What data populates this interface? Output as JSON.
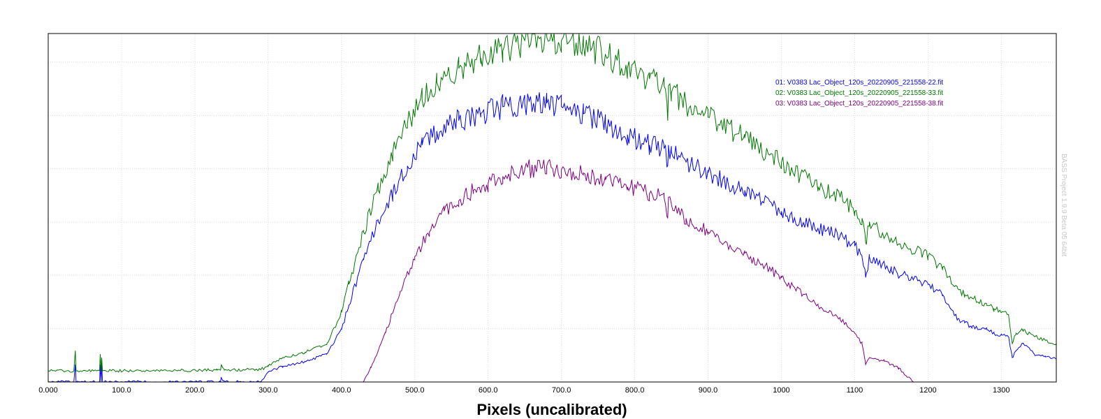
{
  "chart_data": {
    "type": "line",
    "title": "",
    "xlabel": "Pixels (uncalibrated)",
    "ylabel": "",
    "xlim": [
      0,
      1375
    ],
    "ylim": [
      0,
      1
    ],
    "grid": true,
    "legend_position": "top-right",
    "x_tick_labels": [
      "0.000",
      "100.0",
      "200.0",
      "300.0",
      "400.0",
      "500.0",
      "600.0",
      "700.0",
      "800.0",
      "900.0",
      "1000",
      "1100",
      "1200",
      "1300"
    ],
    "x_tick_values": [
      0,
      100,
      200,
      300,
      400,
      500,
      600,
      700,
      800,
      900,
      1000,
      1100,
      1200,
      1300
    ],
    "y_grid_values": [
      0.153,
      0.306,
      0.459,
      0.612,
      0.765,
      0.918
    ],
    "series": [
      {
        "name": "01: V0383 Lac_Object_120s_20220905_221558-22.fit",
        "color": "#0000ff",
        "x": [
          0,
          35,
          37,
          38,
          40,
          70,
          71,
          72,
          73,
          74,
          230,
          235,
          236,
          240,
          290,
          300,
          320,
          350,
          380,
          400,
          410,
          430,
          450,
          470,
          490,
          510,
          530,
          560,
          590,
          620,
          650,
          680,
          700,
          730,
          760,
          790,
          820,
          840,
          845,
          846,
          850,
          870,
          900,
          950,
          1000,
          1050,
          1080,
          1100,
          1110,
          1115,
          1120,
          1150,
          1200,
          1220,
          1240,
          1250,
          1260,
          1280,
          1290,
          1300,
          1310,
          1315,
          1320,
          1330,
          1345,
          1360,
          1375
        ],
        "y": [
          0.0,
          0.0,
          0.05,
          0.0,
          0.0,
          0.0,
          0.05,
          0.0,
          0.05,
          0.0,
          0.0,
          0.0,
          0.012,
          0.0,
          0.0,
          0.028,
          0.045,
          0.058,
          0.08,
          0.15,
          0.22,
          0.35,
          0.46,
          0.54,
          0.62,
          0.68,
          0.72,
          0.75,
          0.77,
          0.79,
          0.8,
          0.8,
          0.79,
          0.77,
          0.74,
          0.71,
          0.68,
          0.67,
          0.62,
          0.68,
          0.66,
          0.63,
          0.6,
          0.55,
          0.49,
          0.44,
          0.42,
          0.39,
          0.36,
          0.3,
          0.36,
          0.32,
          0.28,
          0.25,
          0.18,
          0.17,
          0.16,
          0.15,
          0.14,
          0.135,
          0.13,
          0.07,
          0.09,
          0.11,
          0.08,
          0.072,
          0.066
        ]
      },
      {
        "name": "02: V0383 Lac_Object_120s_20220905_221558-33.fit",
        "color": "#007800",
        "x": [
          0,
          35,
          37,
          38,
          40,
          70,
          71,
          72,
          73,
          74,
          230,
          235,
          236,
          240,
          290,
          300,
          320,
          350,
          380,
          400,
          410,
          430,
          450,
          470,
          490,
          510,
          530,
          560,
          590,
          620,
          650,
          680,
          700,
          730,
          760,
          790,
          820,
          840,
          845,
          846,
          850,
          870,
          900,
          950,
          1000,
          1050,
          1080,
          1100,
          1110,
          1115,
          1120,
          1150,
          1200,
          1220,
          1240,
          1250,
          1260,
          1280,
          1290,
          1300,
          1310,
          1315,
          1320,
          1330,
          1345,
          1360,
          1375
        ],
        "y": [
          0.032,
          0.032,
          0.09,
          0.032,
          0.032,
          0.032,
          0.08,
          0.032,
          0.07,
          0.032,
          0.034,
          0.034,
          0.05,
          0.034,
          0.036,
          0.045,
          0.07,
          0.085,
          0.11,
          0.2,
          0.28,
          0.43,
          0.55,
          0.66,
          0.74,
          0.81,
          0.86,
          0.9,
          0.93,
          0.95,
          0.98,
          0.99,
          0.98,
          0.97,
          0.94,
          0.9,
          0.87,
          0.85,
          0.75,
          0.85,
          0.83,
          0.8,
          0.76,
          0.7,
          0.63,
          0.56,
          0.53,
          0.49,
          0.47,
          0.4,
          0.46,
          0.41,
          0.36,
          0.33,
          0.27,
          0.25,
          0.24,
          0.22,
          0.21,
          0.2,
          0.19,
          0.11,
          0.14,
          0.15,
          0.13,
          0.12,
          0.11
        ]
      },
      {
        "name": "03: V0383 Lac_Object_120s_20220905_221558-38.fit",
        "color": "#800080",
        "x": [
          420,
          430,
          440,
          460,
          480,
          500,
          520,
          540,
          560,
          580,
          600,
          620,
          650,
          680,
          700,
          730,
          760,
          790,
          820,
          840,
          845,
          846,
          850,
          870,
          900,
          950,
          1000,
          1050,
          1080,
          1100,
          1110,
          1115,
          1120,
          1140,
          1160,
          1180
        ],
        "y": [
          -0.02,
          0.0,
          0.04,
          0.14,
          0.26,
          0.36,
          0.43,
          0.49,
          0.52,
          0.55,
          0.57,
          0.59,
          0.61,
          0.62,
          0.61,
          0.6,
          0.58,
          0.56,
          0.54,
          0.53,
          0.47,
          0.53,
          0.51,
          0.47,
          0.43,
          0.37,
          0.3,
          0.22,
          0.18,
          0.14,
          0.11,
          0.05,
          0.07,
          0.06,
          0.04,
          0.0
        ]
      }
    ],
    "watermark": "BASS Project 1.9.9 Beta 05 64bit"
  }
}
